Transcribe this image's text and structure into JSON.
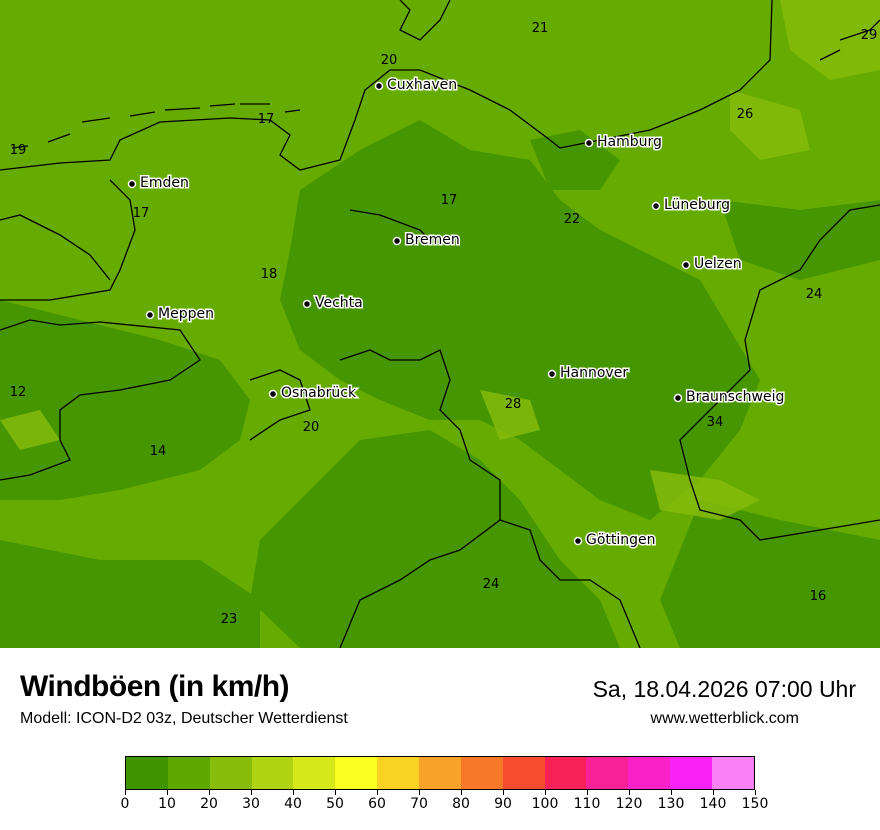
{
  "header": {
    "title": "Windböen (in km/h)",
    "model": "Modell: ICON-D2 03z, Deutscher Wetterdienst",
    "datetime": "Sa, 18.04.2026 07:00 Uhr",
    "website": "www.wetterblick.com"
  },
  "colorbar": {
    "unit": "km/h",
    "ticks": [
      "0",
      "10",
      "20",
      "30",
      "40",
      "50",
      "60",
      "70",
      "80",
      "90",
      "100",
      "110",
      "120",
      "130",
      "140",
      "150"
    ],
    "colors": [
      "#3f9400",
      "#5ea800",
      "#88bd0c",
      "#b0d414",
      "#d4e81a",
      "#faff22",
      "#fad222",
      "#f8a22a",
      "#f8782a",
      "#f84c30",
      "#f82258",
      "#f82298",
      "#f822c8",
      "#f822f6",
      "#f882f6"
    ]
  },
  "map": {
    "background_color": "#66ab00",
    "low_color": "#459600",
    "high_color": "#88bd0c",
    "cities": [
      "Cuxhaven",
      "Hamburg",
      "Emden",
      "Lüneburg",
      "Bremen",
      "Uelzen",
      "Vechta",
      "Meppen",
      "Hannover",
      "Osnabrück",
      "Braunschweig",
      "Göttingen"
    ],
    "values": [
      "21",
      "29",
      "20",
      "26",
      "17",
      "19",
      "17",
      "17",
      "22",
      "18",
      "24",
      "12",
      "28",
      "34",
      "20",
      "14",
      "24",
      "16",
      "23"
    ]
  }
}
